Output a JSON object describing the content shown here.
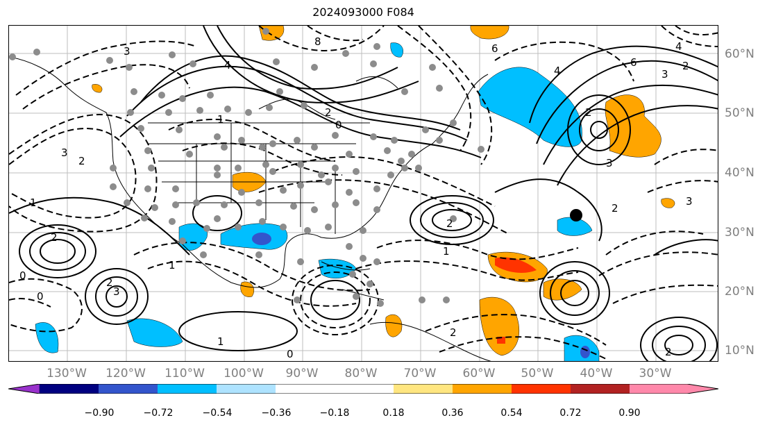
{
  "title": "2024093000 F084",
  "lat_labels": [
    "60°N",
    "50°N",
    "40°N",
    "30°N",
    "20°N",
    "10°N"
  ],
  "lon_labels": [
    "130°W",
    "120°W",
    "110°W",
    "100°W",
    "90°W",
    "80°W",
    "70°W",
    "60°W",
    "50°W",
    "40°W",
    "30°W"
  ],
  "colorbar": {
    "ticks": [
      "−0.90",
      "−0.72",
      "−0.54",
      "−0.36",
      "−0.18",
      "0.18",
      "0.36",
      "0.54",
      "0.72",
      "0.90"
    ],
    "colors": [
      "#9932cc",
      "#000080",
      "#3355cc",
      "#00bfff",
      "#aee3ff",
      "#ffffff",
      "#ffe680",
      "#ffa500",
      "#ff3300",
      "#b22222",
      "#ff88aa"
    ]
  },
  "contour_labels": [
    "8",
    "6",
    "4",
    "3",
    "2",
    "1",
    "0",
    "4",
    "3",
    "2",
    "2",
    "3",
    "4",
    "6",
    "2",
    "1",
    "0",
    "2",
    "3",
    "2",
    "1",
    "0",
    "3",
    "2",
    "1",
    "2",
    "3",
    "2",
    "1",
    "0",
    "2"
  ],
  "colors": {
    "positive": "#ffa500",
    "strong_positive": "#ff3300",
    "negative": "#00bfff",
    "strong_negative": "#3355cc",
    "stations": "#8c8c8c",
    "grid": "#bdbdbd"
  }
}
